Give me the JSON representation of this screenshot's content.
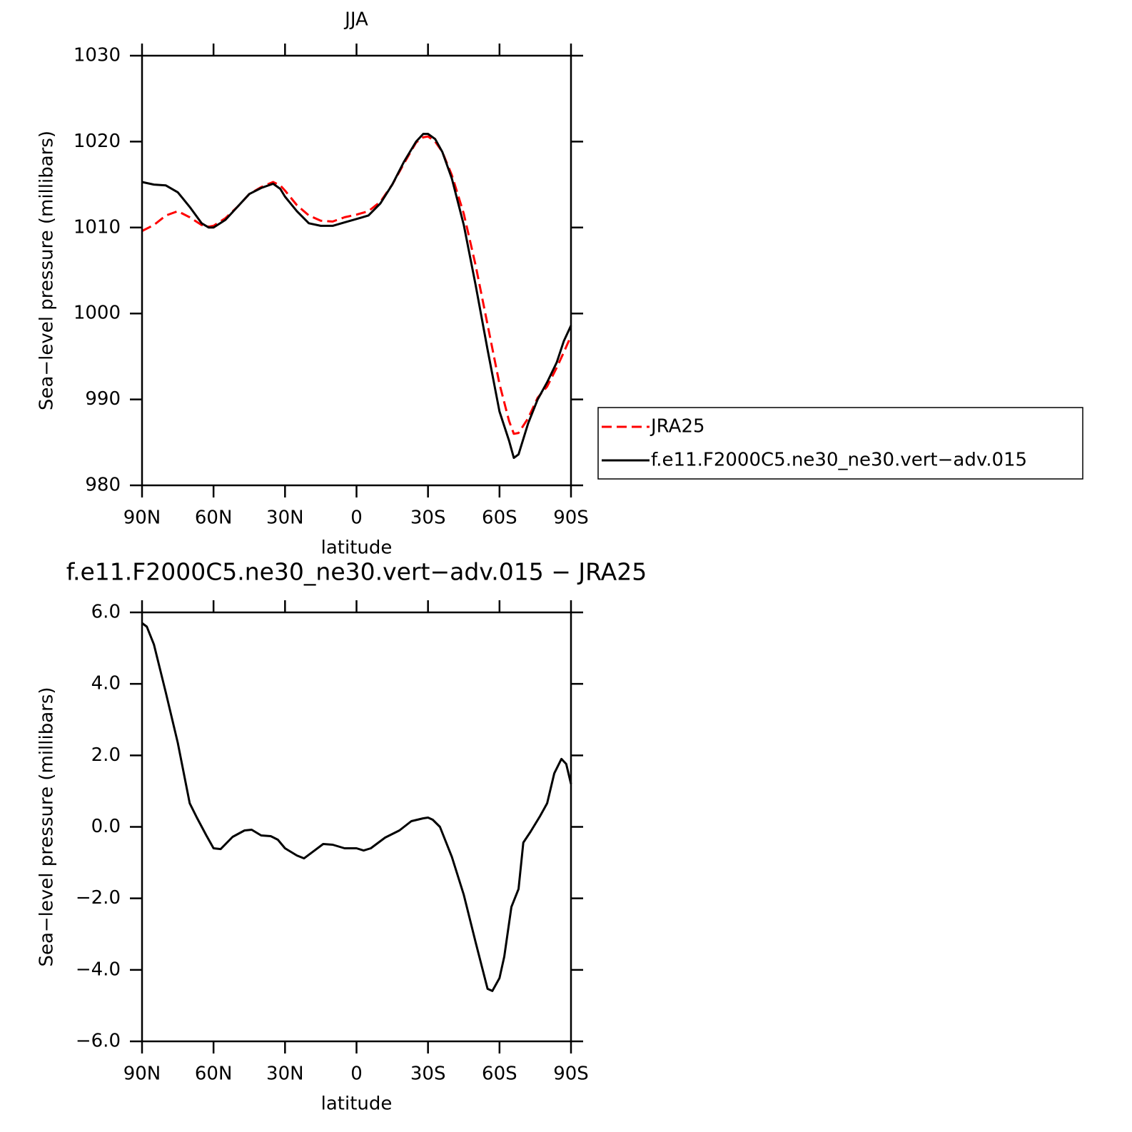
{
  "chart_data": [
    {
      "type": "line",
      "title": "JJA",
      "xlabel": "latitude",
      "ylabel": "Sea−level pressure (millibars)",
      "x": [
        90,
        85,
        80,
        75,
        70,
        65,
        62,
        60,
        55,
        50,
        45,
        40,
        35,
        32,
        30,
        25,
        20,
        15,
        10,
        5,
        0,
        -5,
        -10,
        -15,
        -20,
        -25,
        -28,
        -30,
        -33,
        -36,
        -40,
        -45,
        -50,
        -55,
        -60,
        -64,
        -66,
        -68,
        -72,
        -76,
        -80,
        -84,
        -87,
        -90
      ],
      "series": [
        {
          "name": "JRA25",
          "color": "#ff0000",
          "linestyle": "dashed",
          "values": [
            1009.6,
            1010.3,
            1011.4,
            1011.9,
            1011.2,
            1010.3,
            1010.1,
            1010.2,
            1011.1,
            1012.4,
            1013.9,
            1014.7,
            1015.3,
            1014.9,
            1014.3,
            1012.6,
            1011.4,
            1010.8,
            1010.7,
            1011.2,
            1011.5,
            1011.9,
            1013.0,
            1015.0,
            1017.5,
            1019.9,
            1020.5,
            1020.6,
            1020.0,
            1018.8,
            1016.1,
            1011.6,
            1005.6,
            998.7,
            991.8,
            987.5,
            986.0,
            986.1,
            987.8,
            990.2,
            991.5,
            993.7,
            995.5,
            997.4
          ]
        },
        {
          "name": "f.e11.F2000C5.ne30_ne30.vert−adv.015",
          "color": "#000000",
          "linestyle": "solid",
          "values": [
            1015.3,
            1015.0,
            1014.9,
            1014.1,
            1012.4,
            1010.5,
            1010.0,
            1010.0,
            1010.9,
            1012.4,
            1013.9,
            1014.6,
            1015.1,
            1014.5,
            1013.6,
            1011.9,
            1010.5,
            1010.2,
            1010.2,
            1010.6,
            1011.0,
            1011.4,
            1012.8,
            1015.0,
            1017.7,
            1020.0,
            1020.9,
            1020.9,
            1020.3,
            1018.8,
            1015.7,
            1010.3,
            1003.3,
            995.8,
            988.6,
            985.2,
            983.2,
            983.6,
            987.2,
            990.0,
            992.0,
            994.3,
            996.8,
            998.6
          ]
        }
      ],
      "xlim": [
        90,
        -90
      ],
      "ylim": [
        980,
        1030
      ],
      "xticks": [
        {
          "value": 90,
          "label": "90N"
        },
        {
          "value": 60,
          "label": "60N"
        },
        {
          "value": 30,
          "label": "30N"
        },
        0,
        {
          "value": -30,
          "label": "30S"
        },
        {
          "value": -60,
          "label": "60S"
        },
        {
          "value": -90,
          "label": "90S"
        }
      ],
      "yticks": [
        980,
        990,
        1000,
        1010,
        1020,
        1030
      ],
      "legend": "right"
    },
    {
      "type": "line",
      "title": "f.e11.F2000C5.ne30_ne30.vert−adv.015 − JRA25",
      "xlabel": "latitude",
      "ylabel": "Sea−level pressure (millibars)",
      "x": [
        90,
        88,
        85,
        80,
        75,
        70,
        67,
        63,
        60,
        57,
        52,
        47,
        44,
        40,
        36,
        33,
        30,
        25,
        22,
        18,
        14,
        10,
        5,
        0,
        -3,
        -6,
        -12,
        -18,
        -23,
        -28,
        -30,
        -32,
        -35,
        -40,
        -45,
        -50,
        -55,
        -57,
        -60,
        -62,
        -65,
        -68,
        -70,
        -73,
        -77,
        -80,
        -83,
        -86,
        -88,
        -90
      ],
      "series": [
        {
          "color": "#000000",
          "linestyle": "solid",
          "values": [
            5.7,
            5.6,
            5.1,
            3.75,
            2.35,
            0.66,
            0.26,
            -0.24,
            -0.6,
            -0.62,
            -0.28,
            -0.1,
            -0.08,
            -0.24,
            -0.26,
            -0.36,
            -0.6,
            -0.8,
            -0.88,
            -0.68,
            -0.48,
            -0.5,
            -0.6,
            -0.6,
            -0.66,
            -0.6,
            -0.3,
            -0.1,
            0.16,
            0.24,
            0.26,
            0.2,
            0.0,
            -0.84,
            -1.9,
            -3.23,
            -4.53,
            -4.59,
            -4.23,
            -3.63,
            -2.24,
            -1.74,
            -0.44,
            -0.14,
            0.3,
            0.66,
            1.5,
            1.9,
            1.76,
            1.2
          ]
        }
      ],
      "xlim": [
        90,
        -90
      ],
      "ylim": [
        -6,
        6
      ],
      "xticks": [
        {
          "value": 90,
          "label": "90N"
        },
        {
          "value": 60,
          "label": "60N"
        },
        {
          "value": 30,
          "label": "30N"
        },
        0,
        {
          "value": -30,
          "label": "30S"
        },
        {
          "value": -60,
          "label": "60S"
        },
        {
          "value": -90,
          "label": "90S"
        }
      ],
      "yticks": [
        {
          "value": -6,
          "label": "−6.0"
        },
        {
          "value": -4,
          "label": "−4.0"
        },
        {
          "value": -2,
          "label": "−2.0"
        },
        {
          "value": 0,
          "label": "0.0"
        },
        {
          "value": 2,
          "label": "2.0"
        },
        {
          "value": 4,
          "label": "4.0"
        },
        {
          "value": 6,
          "label": "6.0"
        }
      ]
    }
  ]
}
